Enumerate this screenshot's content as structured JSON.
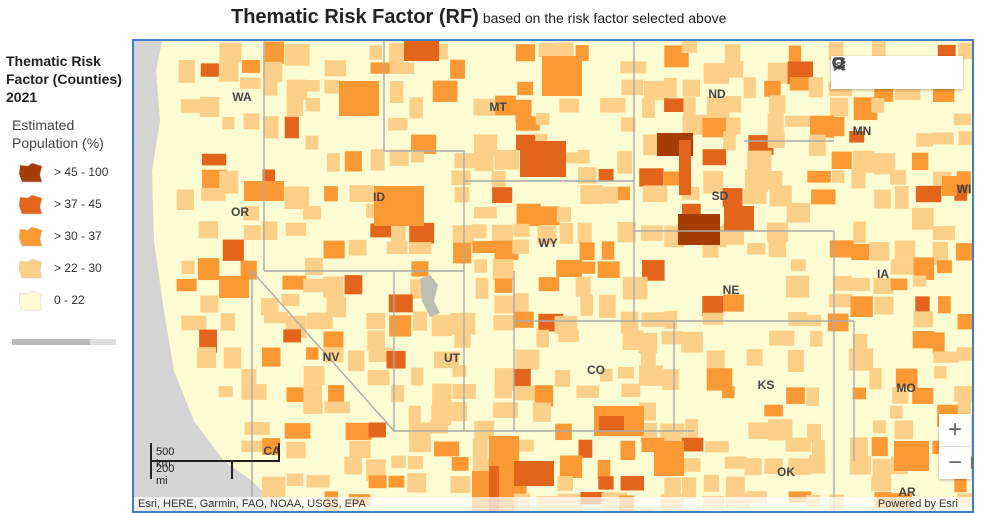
{
  "header": {
    "title": "Thematic Risk Factor (RF)",
    "subtitle": "based on the risk factor selected above"
  },
  "legend": {
    "title": "Thematic Risk Factor (Counties) 2021",
    "subtitle": "Estimated Population (%)",
    "items": [
      {
        "label": "> 45 - 100",
        "color": "#a63c06"
      },
      {
        "label": "> 37 - 45",
        "color": "#e3651c"
      },
      {
        "label": "> 30 - 37",
        "color": "#fb9a35"
      },
      {
        "label": "> 22 - 30",
        "color": "#fdd08a"
      },
      {
        "label": "0 - 22",
        "color": "#fefcd2"
      }
    ]
  },
  "map": {
    "state_labels": [
      "WA",
      "MT",
      "ND",
      "MN",
      "OR",
      "ID",
      "SD",
      "WI",
      "WY",
      "IA",
      "NE",
      "NV",
      "UT",
      "CO",
      "KS",
      "MO",
      "CA",
      "OK",
      "AR"
    ],
    "scale": {
      "metric": "500 km",
      "imperial": "200 mi"
    },
    "attribution": "Esri, HERE, Garmin, FAO, NOAA, USGS, EPA",
    "powered_by": "Powered by Esri"
  }
}
